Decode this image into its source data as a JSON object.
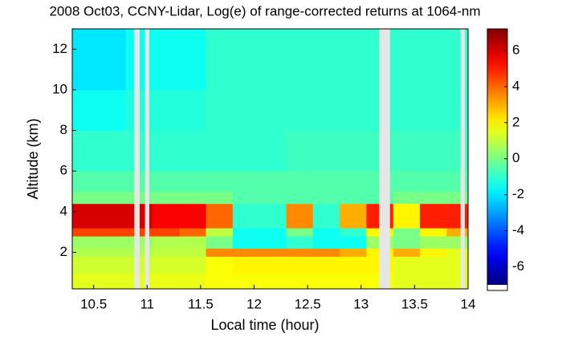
{
  "chart_data": {
    "type": "heatmap",
    "title": "2008 Oct03, CCNY-Lidar, Log(e) of range-corrected returns at 1064-nm",
    "xlabel": "Local time (hour)",
    "ylabel": "Altitude (km)",
    "xlim": [
      10.3,
      14.0
    ],
    "ylim": [
      0.2,
      13.0
    ],
    "xticks": [
      10.5,
      11,
      11.5,
      12,
      12.5,
      13,
      13.5,
      14
    ],
    "yticks": [
      2,
      4,
      6,
      8,
      10,
      12
    ],
    "colormap": "jet",
    "clim": [
      -7.0,
      7.2
    ],
    "colorbar_ticks": [
      -6,
      -4,
      -2,
      0,
      2,
      4,
      6
    ],
    "x": [
      10.3,
      10.55,
      10.8,
      11.05,
      11.3,
      11.55,
      11.8,
      12.05,
      12.3,
      12.55,
      12.8,
      13.05,
      13.3,
      13.55,
      13.8,
      14.0
    ],
    "y": [
      0.2,
      1,
      1.8,
      2.2,
      2.8,
      3.2,
      4.4,
      5,
      6,
      8,
      10,
      13
    ],
    "z": [
      [
        1.5,
        1.5,
        1.5,
        1.6,
        1.6,
        1.8,
        1.8,
        1.8,
        1.8,
        1.8,
        1.8,
        1.8,
        1.5,
        1.5,
        1.5
      ],
      [
        1.2,
        1.2,
        1.2,
        1.3,
        1.3,
        1.8,
        2,
        2,
        2,
        2,
        2,
        2,
        1.5,
        1.5,
        1.5
      ],
      [
        0.8,
        0.8,
        0.8,
        1,
        1,
        3.5,
        3.5,
        3.5,
        3.5,
        3.5,
        3,
        2,
        3,
        2,
        1.5
      ],
      [
        0.5,
        0.5,
        0.5,
        0.8,
        0.8,
        0,
        -1.5,
        -1.5,
        -1,
        -1.5,
        -1.5,
        0.5,
        0,
        0.5,
        0.5
      ],
      [
        4.5,
        4.5,
        4.5,
        4.5,
        4,
        1,
        -1.5,
        -1.5,
        0,
        -1.5,
        -1,
        2,
        0,
        2,
        3
      ],
      [
        6,
        6,
        6,
        5.5,
        5.5,
        4,
        -1,
        -1,
        3.5,
        -1,
        3,
        5,
        2,
        5,
        5
      ],
      [
        0,
        0,
        0,
        0,
        0,
        0,
        -0.5,
        -0.5,
        -0.5,
        -0.5,
        -0.5,
        -0.5,
        0,
        0,
        0
      ],
      [
        -0.5,
        -0.5,
        -0.5,
        -0.5,
        -0.5,
        -0.5,
        -0.5,
        -0.5,
        -0.5,
        -0.5,
        -0.5,
        -0.5,
        -0.5,
        -0.5,
        -0.5
      ],
      [
        -1,
        -1,
        -1,
        -1,
        -1,
        -1,
        -1,
        -1,
        -0.8,
        -0.8,
        -0.8,
        -0.8,
        -0.8,
        -0.8,
        -0.8
      ],
      [
        -1.5,
        -1.5,
        -1.2,
        -1.2,
        -1.2,
        -1,
        -1,
        -1,
        -1,
        -1,
        -1,
        -1,
        -1,
        -1,
        -1
      ],
      [
        -2,
        -2,
        -1.5,
        -1.5,
        -1.5,
        -1,
        -1,
        -1,
        -1,
        -1,
        -1,
        -1,
        -1,
        -1,
        -1
      ]
    ],
    "gaps": [
      [
        10.88,
        10.93
      ],
      [
        10.98,
        11.02
      ],
      [
        13.17,
        13.27
      ],
      [
        13.93,
        13.97
      ]
    ],
    "gap_color": "#e6e6e6"
  }
}
